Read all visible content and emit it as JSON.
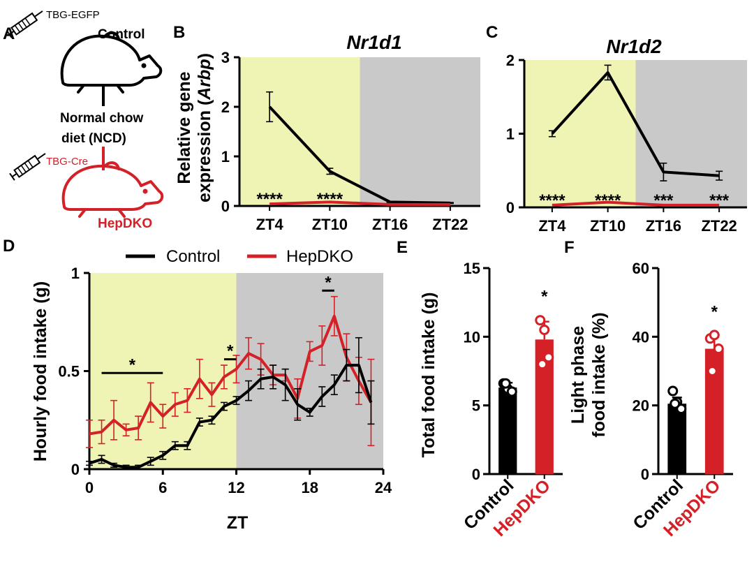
{
  "colors": {
    "control": "#000000",
    "hepdko": "#d42027",
    "light_phase": "#eff4b4",
    "dark_phase": "#c9c9c9"
  },
  "panel_a": {
    "letter": "A",
    "control_vector": "TBG-EGFP",
    "control_label": "Control",
    "diet_line1": "Normal chow",
    "diet_line2": "diet (NCD)",
    "ko_vector": "TBG-Cre",
    "ko_label": "HepDKO",
    "icons": [
      "syringe-icon",
      "mouse-icon"
    ]
  },
  "chart_data": [
    {
      "id": "B",
      "type": "line",
      "letter": "B",
      "title": "Nr1d1",
      "ylabel_pre": "Relative gene",
      "ylabel_main": "expression (",
      "ylabel_ital": "Arbp",
      "ylabel_post": ")",
      "categories": [
        "ZT4",
        "ZT10",
        "ZT16",
        "ZT22"
      ],
      "ylim": [
        0,
        3
      ],
      "yticks": [
        "0",
        "1",
        "2",
        "3"
      ],
      "light_phase_until_index": 1.5,
      "series": [
        {
          "name": "Control",
          "values": [
            2.0,
            0.7,
            0.08,
            0.06
          ],
          "errors": [
            0.3,
            0.06,
            0.01,
            0.01
          ]
        },
        {
          "name": "HepDKO",
          "values": [
            0.04,
            0.08,
            0.03,
            0.03
          ],
          "errors": [
            0,
            0,
            0,
            0
          ]
        }
      ],
      "significance": [
        "****",
        "****",
        "",
        ""
      ]
    },
    {
      "id": "C",
      "type": "line",
      "letter": "C",
      "title": "Nr1d2",
      "categories": [
        "ZT4",
        "ZT10",
        "ZT16",
        "ZT22"
      ],
      "ylim": [
        0,
        2
      ],
      "yticks": [
        "0",
        "1",
        "2"
      ],
      "light_phase_until_index": 1.5,
      "series": [
        {
          "name": "Control",
          "values": [
            1.0,
            1.83,
            0.48,
            0.43
          ],
          "errors": [
            0.04,
            0.1,
            0.12,
            0.06
          ]
        },
        {
          "name": "HepDKO",
          "values": [
            0.03,
            0.07,
            0.03,
            0.03
          ],
          "errors": [
            0,
            0,
            0,
            0
          ]
        }
      ],
      "significance": [
        "****",
        "****",
        "***",
        "***"
      ]
    },
    {
      "id": "D",
      "type": "line",
      "letter": "D",
      "xlabel": "ZT",
      "ylabel": "Hourly food intake (g)",
      "xlim": [
        0,
        24
      ],
      "xticks": [
        "0",
        "6",
        "12",
        "18",
        "24"
      ],
      "ylim": [
        0,
        1
      ],
      "yticks": [
        "0",
        "0.5",
        "1"
      ],
      "light_phase_until": 12,
      "x": [
        0,
        1,
        2,
        3,
        4,
        5,
        6,
        7,
        8,
        9,
        10,
        11,
        12,
        13,
        14,
        15,
        16,
        17,
        18,
        19,
        20,
        21,
        22,
        23
      ],
      "series": [
        {
          "name": "Control",
          "values": [
            0.03,
            0.05,
            0.02,
            0.01,
            0.01,
            0.04,
            0.07,
            0.12,
            0.12,
            0.24,
            0.25,
            0.32,
            0.35,
            0.4,
            0.46,
            0.47,
            0.43,
            0.33,
            0.29,
            0.37,
            0.43,
            0.53,
            0.53,
            0.34
          ],
          "errors": [
            0.01,
            0.02,
            0.01,
            0.01,
            0.01,
            0.02,
            0.02,
            0.02,
            0.02,
            0.02,
            0.02,
            0.02,
            0.02,
            0.05,
            0.05,
            0.06,
            0.08,
            0.08,
            0.02,
            0.05,
            0.05,
            0.08,
            0.14,
            0.11
          ]
        },
        {
          "name": "HepDKO",
          "values": [
            0.18,
            0.19,
            0.25,
            0.2,
            0.21,
            0.34,
            0.27,
            0.33,
            0.35,
            0.46,
            0.38,
            0.47,
            0.51,
            0.59,
            0.56,
            0.48,
            0.48,
            0.36,
            0.6,
            0.63,
            0.78,
            0.57,
            0.45,
            0.34
          ],
          "errors": [
            0.07,
            0.06,
            0.1,
            0.03,
            0.06,
            0.1,
            0.06,
            0.06,
            0.06,
            0.1,
            0.06,
            0.06,
            0.07,
            0.08,
            0.08,
            0.05,
            0.03,
            0.1,
            0.05,
            0.1,
            0.1,
            0.12,
            0.12,
            0.22
          ]
        }
      ],
      "legend": [
        "Control",
        "HepDKO"
      ],
      "significance": [
        {
          "from": 1,
          "to": 6,
          "y": 0.49,
          "label": "*"
        },
        {
          "from": 11,
          "to": 12,
          "y": 0.56,
          "label": "*"
        },
        {
          "from": 19,
          "to": 20,
          "y": 0.91,
          "label": "*"
        }
      ]
    },
    {
      "id": "E",
      "type": "bar",
      "letter": "E",
      "ylabel": "Total food intake (g)",
      "categories": [
        "Control",
        "HepDKO"
      ],
      "ylim": [
        0,
        15
      ],
      "yticks": [
        "0",
        "5",
        "10",
        "15"
      ],
      "values": [
        6.3,
        9.8
      ],
      "errors": [
        0.35,
        1.3
      ],
      "points": [
        [
          6.6,
          6.2,
          6.0,
          6.6
        ],
        [
          11.2,
          10.5,
          8.5,
          8.0
        ]
      ],
      "significance": "*"
    },
    {
      "id": "F",
      "type": "bar",
      "letter": "F",
      "ylabel_line1": "Light phase",
      "ylabel_line2": "food intake (%)",
      "categories": [
        "Control",
        "HepDKO"
      ],
      "ylim": [
        0,
        60
      ],
      "yticks": [
        "0",
        "20",
        "40",
        "60"
      ],
      "values": [
        20.5,
        36.5
      ],
      "errors": [
        1.8,
        3.5
      ],
      "points": [
        [
          24.2,
          21.0,
          19.0,
          20.5
        ],
        [
          39.5,
          40.5,
          36.5,
          30.0
        ]
      ],
      "significance": "*"
    }
  ]
}
